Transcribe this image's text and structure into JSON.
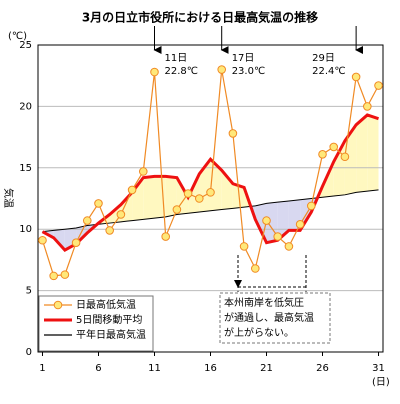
{
  "chart_data": {
    "type": "line",
    "title": "3月の日立市役所における日最高気温の推移",
    "y_unit": "(℃)",
    "y_label": "気温",
    "x_unit": "(日)",
    "x": [
      1,
      2,
      3,
      4,
      5,
      6,
      7,
      8,
      9,
      10,
      11,
      12,
      13,
      14,
      15,
      16,
      17,
      18,
      19,
      20,
      21,
      22,
      23,
      24,
      25,
      26,
      27,
      28,
      29,
      30,
      31
    ],
    "xlim": [
      0.6,
      31.4
    ],
    "xticks": [
      1,
      6,
      11,
      16,
      21,
      26,
      31
    ],
    "ylim": [
      0,
      25
    ],
    "yticks": [
      0,
      5,
      10,
      15,
      20,
      25
    ],
    "grid": true,
    "series": [
      {
        "name": "日最高低気温",
        "color": "#f08a24",
        "marker_color": "#ffe87a",
        "values": [
          9.1,
          6.2,
          6.3,
          8.9,
          10.7,
          12.1,
          9.9,
          11.2,
          13.2,
          14.7,
          22.8,
          9.4,
          11.6,
          12.9,
          12.5,
          13.0,
          23.0,
          17.8,
          8.6,
          6.8,
          10.7,
          9.4,
          8.6,
          10.4,
          11.9,
          16.1,
          16.7,
          15.9,
          22.4,
          20.0,
          21.7
        ]
      },
      {
        "name": "5日間移動平均",
        "color": "#ee1111",
        "values": [
          9.8,
          9.3,
          8.3,
          8.8,
          9.7,
          10.5,
          11.2,
          12.0,
          13.0,
          14.2,
          14.3,
          14.3,
          14.2,
          12.6,
          14.5,
          15.7,
          14.8,
          13.7,
          13.4,
          10.8,
          8.9,
          9.1,
          9.9,
          9.9,
          11.4,
          13.5,
          15.5,
          17.2,
          18.5,
          19.3,
          19.0
        ]
      },
      {
        "name": "平年日最高気温",
        "color": "#000000",
        "values": [
          9.8,
          9.9,
          10.0,
          10.1,
          10.3,
          10.4,
          10.5,
          10.6,
          10.7,
          10.8,
          10.9,
          11.0,
          11.2,
          11.3,
          11.4,
          11.5,
          11.6,
          11.7,
          11.8,
          11.9,
          12.1,
          12.2,
          12.3,
          12.4,
          12.5,
          12.6,
          12.7,
          12.8,
          13.0,
          13.1,
          13.2
        ]
      }
    ],
    "fill_above_color": "#fff8c0",
    "fill_below_color": "#d8d8f0",
    "annotations": [
      {
        "day": 11,
        "lines": [
          "11日",
          "22.8℃"
        ]
      },
      {
        "day": 17,
        "lines": [
          "17日",
          "23.0℃"
        ]
      },
      {
        "day": 29,
        "lines": [
          "29日",
          "22.4℃"
        ]
      }
    ],
    "note": [
      "本州南岸を低気圧",
      "が通過し、最高気温",
      "が上がらない。"
    ]
  }
}
